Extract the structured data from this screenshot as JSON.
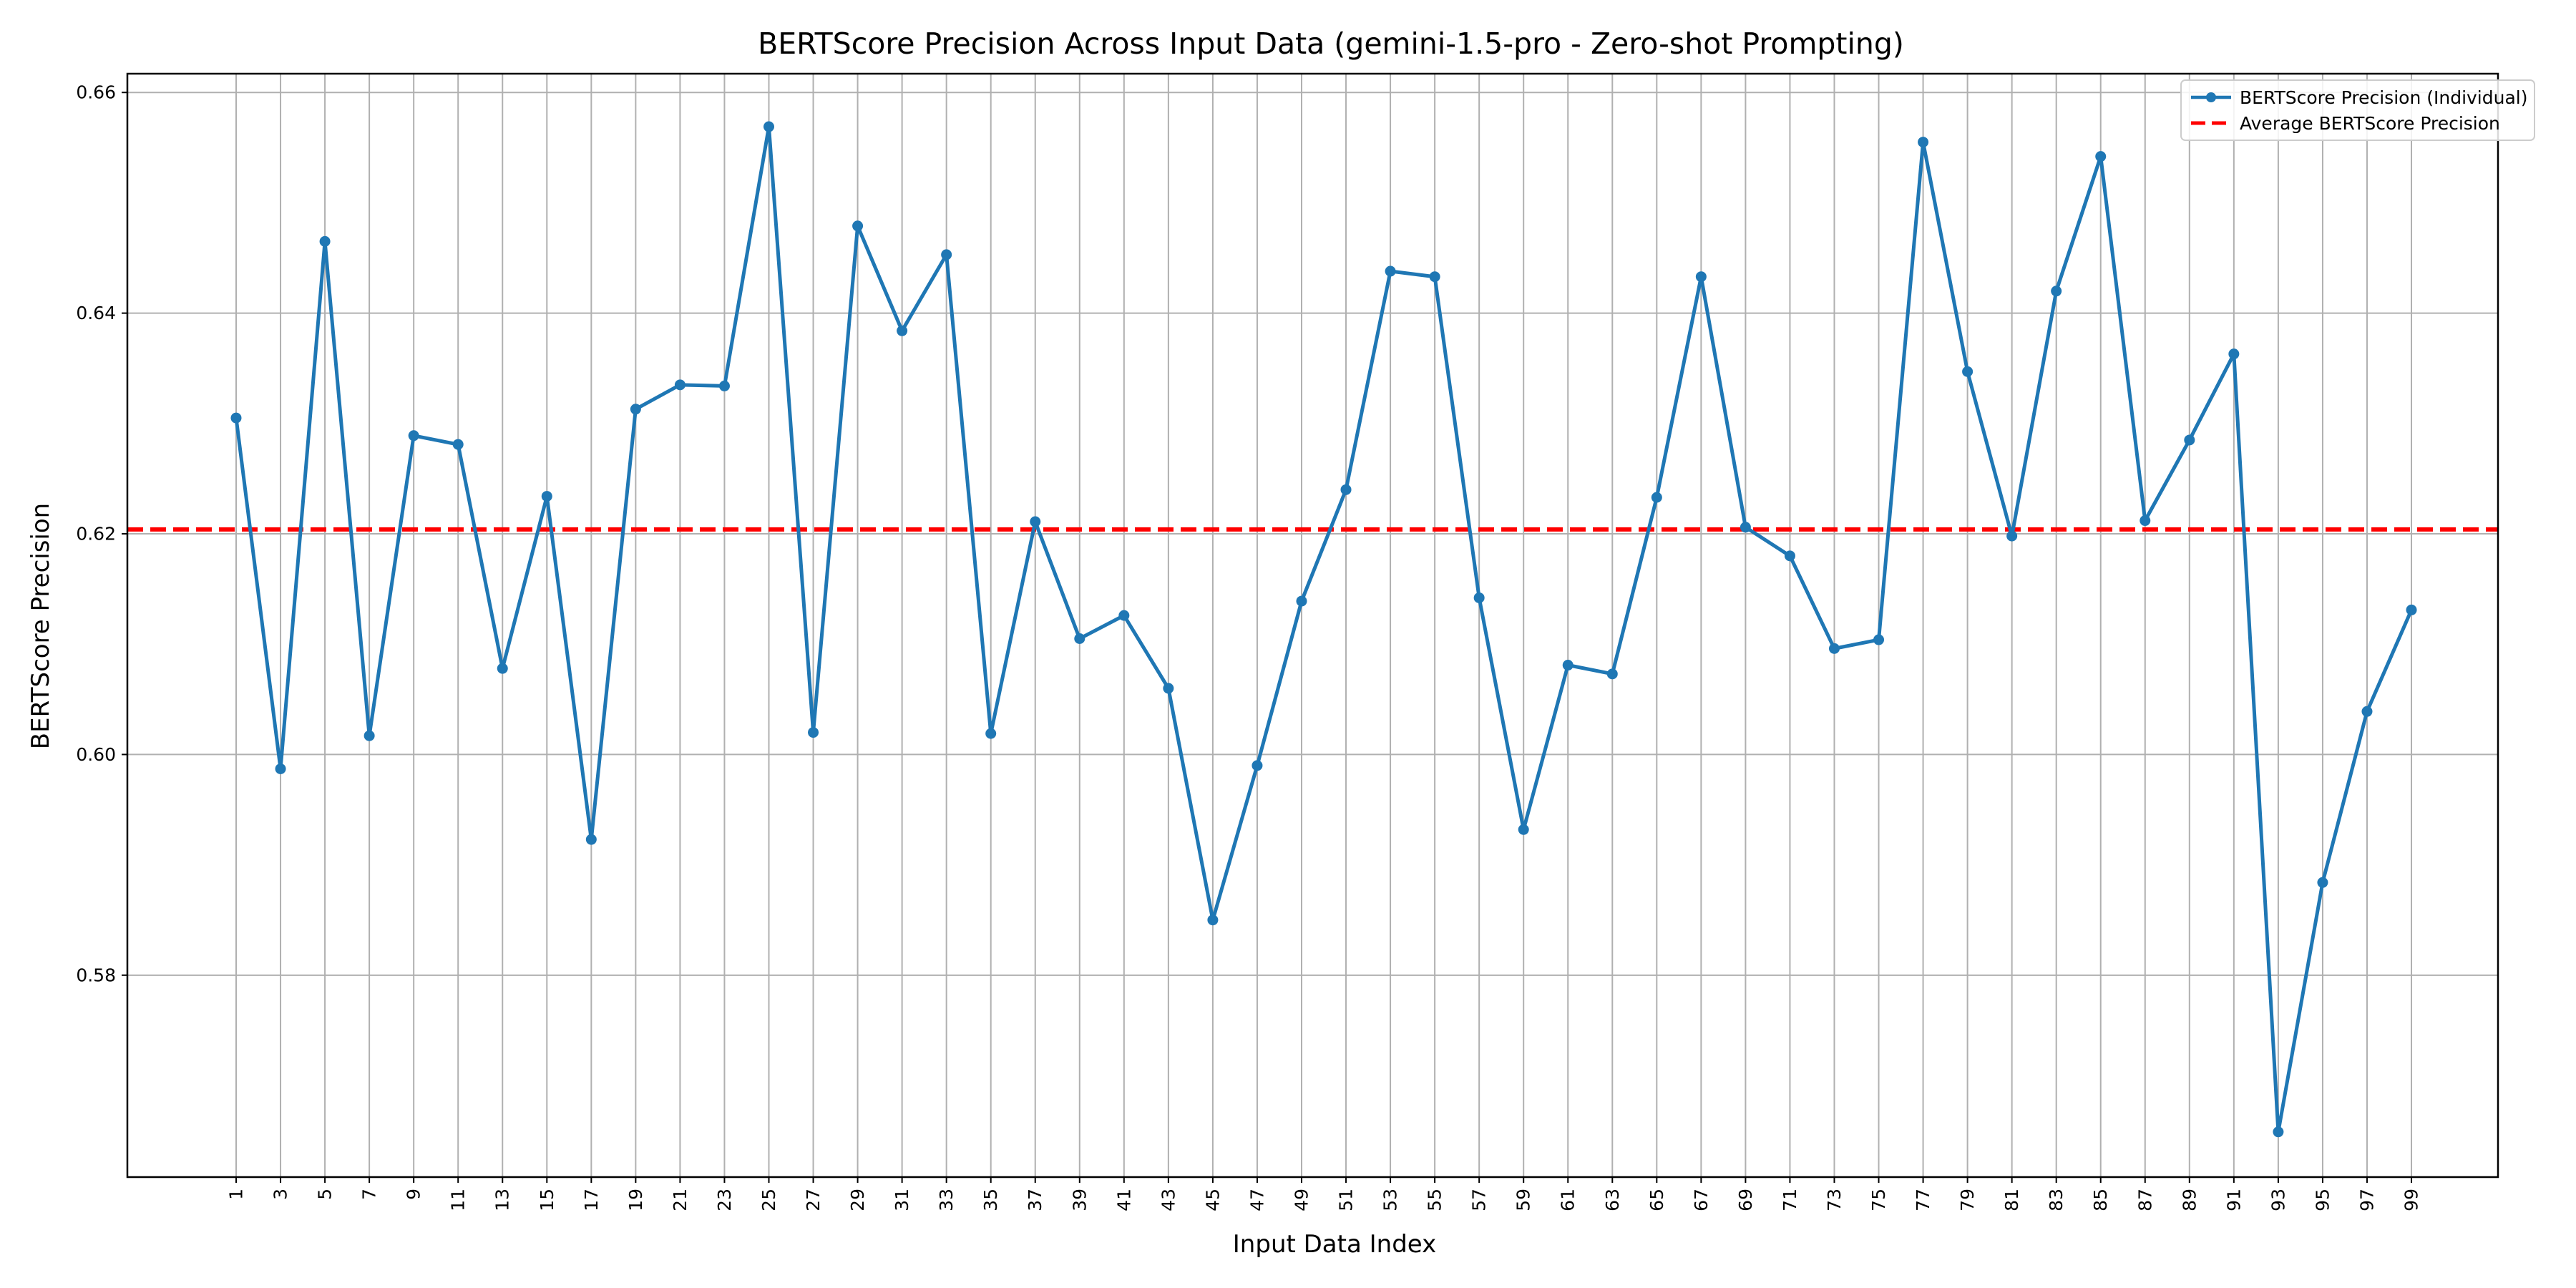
{
  "chart_data": {
    "type": "line",
    "title": "BERTScore Precision Across Input Data (gemini-1.5-pro - Zero-shot Prompting)",
    "xlabel": "Input Data Index",
    "ylabel": "BERTScore Precision",
    "x": [
      1,
      3,
      5,
      7,
      9,
      11,
      13,
      15,
      17,
      19,
      21,
      23,
      25,
      27,
      29,
      31,
      33,
      35,
      37,
      39,
      41,
      43,
      45,
      47,
      49,
      51,
      53,
      55,
      57,
      59,
      61,
      63,
      65,
      67,
      69,
      71,
      73,
      75,
      77,
      79,
      81,
      83,
      85,
      87,
      89,
      91,
      93,
      95,
      97,
      99
    ],
    "x_tick_labels": [
      "1",
      "3",
      "5",
      "7",
      "9",
      "11",
      "13",
      "15",
      "17",
      "19",
      "21",
      "23",
      "25",
      "27",
      "29",
      "31",
      "33",
      "35",
      "37",
      "39",
      "41",
      "43",
      "45",
      "47",
      "49",
      "51",
      "53",
      "55",
      "57",
      "59",
      "61",
      "63",
      "65",
      "67",
      "69",
      "71",
      "73",
      "75",
      "77",
      "79",
      "81",
      "83",
      "85",
      "87",
      "89",
      "91",
      "93",
      "95",
      "97",
      "99"
    ],
    "y_tick_labels": [
      "0.58",
      "0.60",
      "0.62",
      "0.64",
      "0.66"
    ],
    "y_ticks": [
      0.58,
      0.6,
      0.62,
      0.64,
      0.66
    ],
    "xlim": [
      -3.9,
      102.9
    ],
    "ylim": [
      0.5617,
      0.6617
    ],
    "grid": true,
    "legend_position": "top-right",
    "series": [
      {
        "name": "BERTScore Precision (Individual)",
        "color": "#1f77b4",
        "marker": "circle",
        "values": [
          0.6305,
          0.5987,
          0.6465,
          0.6017,
          0.6289,
          0.6281,
          0.6078,
          0.6234,
          0.5923,
          0.6313,
          0.6335,
          0.6334,
          0.6569,
          0.602,
          0.6479,
          0.6384,
          0.6453,
          0.6019,
          0.6211,
          0.6105,
          0.6126,
          0.606,
          0.585,
          0.599,
          0.6139,
          0.624,
          0.6438,
          0.6433,
          0.6142,
          0.5932,
          0.6081,
          0.6073,
          0.6233,
          0.6433,
          0.6206,
          0.618,
          0.6096,
          0.6104,
          0.6555,
          0.6347,
          0.6198,
          0.642,
          0.6542,
          0.6212,
          0.6285,
          0.6363,
          0.5658,
          0.5884,
          0.6039,
          0.6131
        ]
      },
      {
        "name": "Average BERTScore Precision",
        "color": "#ff0000",
        "style": "dashed",
        "value": 0.6204
      }
    ]
  }
}
